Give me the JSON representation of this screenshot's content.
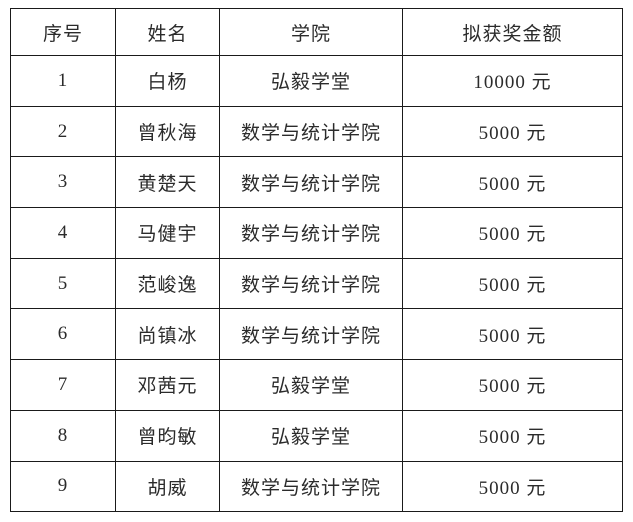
{
  "table": {
    "headers": {
      "serial": "序号",
      "name": "姓名",
      "college": "学院",
      "amount": "拟获奖金额"
    },
    "rows": [
      {
        "no": "1",
        "name": "白杨",
        "college": "弘毅学堂",
        "amount": "10000 元"
      },
      {
        "no": "2",
        "name": "曾秋海",
        "college": "数学与统计学院",
        "amount": "5000 元"
      },
      {
        "no": "3",
        "name": "黄楚天",
        "college": "数学与统计学院",
        "amount": "5000 元"
      },
      {
        "no": "4",
        "name": "马健宇",
        "college": "数学与统计学院",
        "amount": "5000 元"
      },
      {
        "no": "5",
        "name": "范峻逸",
        "college": "数学与统计学院",
        "amount": "5000 元"
      },
      {
        "no": "6",
        "name": "尚镇冰",
        "college": "数学与统计学院",
        "amount": "5000 元"
      },
      {
        "no": "7",
        "name": "邓茜元",
        "college": "弘毅学堂",
        "amount": "5000 元"
      },
      {
        "no": "8",
        "name": "曾昀敏",
        "college": "弘毅学堂",
        "amount": "5000 元"
      },
      {
        "no": "9",
        "name": "胡威",
        "college": "数学与统计学院",
        "amount": "5000 元"
      }
    ],
    "colors": {
      "border": "#1a1a1a",
      "text": "#2b2b2b",
      "background": "#ffffff"
    }
  }
}
